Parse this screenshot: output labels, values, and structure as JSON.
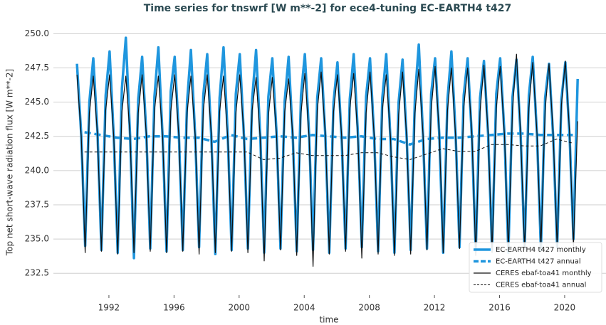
{
  "chart_data": {
    "type": "line",
    "title": "Time series for tnswrf [W m**-2] for ece4-tuning EC-EARTH4 t427",
    "xlabel": "time",
    "ylabel": "Top net short-wave radiation flux [W m**-2]",
    "xlim": [
      1988.59,
      2022.54
    ],
    "ylim": [
      230.9,
      250.9
    ],
    "xticks": [
      1992,
      1996,
      2000,
      2004,
      2008,
      2012,
      2016,
      2020
    ],
    "yticks": [
      {
        "value": 232.5,
        "label": "232.5"
      },
      {
        "value": 235,
        "label": "235.0"
      },
      {
        "value": 237.5,
        "label": "237.5"
      },
      {
        "value": 240,
        "label": "240.0"
      },
      {
        "value": 242.5,
        "label": "242.5"
      },
      {
        "value": 245,
        "label": "245.0"
      },
      {
        "value": 247.5,
        "label": "247.5"
      },
      {
        "value": 250,
        "label": "250.0"
      }
    ],
    "grid": true,
    "legend": "lower right",
    "series": [
      {
        "name": "EC-EARTH4 t427 monthly",
        "color": "#1f96de",
        "width": 3.5,
        "style": "solid",
        "x": [
          1990.04,
          1990.3,
          1990.54,
          1990.8,
          1991.04,
          1991.3,
          1991.54,
          1991.8,
          1992.04,
          1992.3,
          1992.54,
          1992.8,
          1993.04,
          1993.3,
          1993.54,
          1993.8,
          1994.04,
          1994.3,
          1994.54,
          1994.8,
          1995.04,
          1995.3,
          1995.54,
          1995.8,
          1996.04,
          1996.3,
          1996.54,
          1996.8,
          1997.04,
          1997.3,
          1997.54,
          1997.8,
          1998.04,
          1998.3,
          1998.54,
          1998.8,
          1999.04,
          1999.3,
          1999.54,
          1999.8,
          2000.04,
          2000.3,
          2000.54,
          2000.8,
          2001.04,
          2001.3,
          2001.54,
          2001.8,
          2002.04,
          2002.3,
          2002.54,
          2002.8,
          2003.04,
          2003.3,
          2003.54,
          2003.8,
          2004.04,
          2004.3,
          2004.54,
          2004.8,
          2005.04,
          2005.3,
          2005.54,
          2005.8,
          2006.04,
          2006.3,
          2006.54,
          2006.8,
          2007.04,
          2007.3,
          2007.54,
          2007.8,
          2008.04,
          2008.3,
          2008.54,
          2008.8,
          2009.04,
          2009.3,
          2009.54,
          2009.8,
          2010.04,
          2010.3,
          2010.54,
          2010.8,
          2011.04,
          2011.3,
          2011.54,
          2011.8,
          2012.04,
          2012.3,
          2012.54,
          2012.8,
          2013.04,
          2013.3,
          2013.54,
          2013.8,
          2014.04,
          2014.3,
          2014.54,
          2014.8,
          2015.04,
          2015.3,
          2015.54,
          2015.8,
          2016.04,
          2016.3,
          2016.54,
          2016.8,
          2017.04,
          2017.3,
          2017.54,
          2017.8,
          2018.04,
          2018.3,
          2018.54,
          2018.8,
          2019.04,
          2019.3,
          2019.54,
          2019.8,
          2020.04,
          2020.3,
          2020.54,
          2020.8
        ],
        "values": [
          247.8,
          242.6,
          234.5,
          245.0,
          248.2,
          242.8,
          234.2,
          245.5,
          248.7,
          242.4,
          234.0,
          246.0,
          249.7,
          242.5,
          233.6,
          245.2,
          248.3,
          242.7,
          234.3,
          245.4,
          249.0,
          242.4,
          234.1,
          245.8,
          248.3,
          242.6,
          234.2,
          245.0,
          248.8,
          242.5,
          234.4,
          245.5,
          248.5,
          242.3,
          233.9,
          245.3,
          249.0,
          242.6,
          234.2,
          245.6,
          248.5,
          242.4,
          234.3,
          245.2,
          248.8,
          242.5,
          234.0,
          245.4,
          248.2,
          242.7,
          234.3,
          245.1,
          248.3,
          242.4,
          234.1,
          245.5,
          248.5,
          242.6,
          234.2,
          245.3,
          248.2,
          242.5,
          234.0,
          245.0,
          247.9,
          242.3,
          234.3,
          245.2,
          248.5,
          242.6,
          234.4,
          245.4,
          248.2,
          242.4,
          234.1,
          245.3,
          248.5,
          242.2,
          234.0,
          245.0,
          248.1,
          242.3,
          234.2,
          245.4,
          249.2,
          242.5,
          234.3,
          245.6,
          248.2,
          242.6,
          234.0,
          245.2,
          248.7,
          242.7,
          234.4,
          245.5,
          248.2,
          242.4,
          234.1,
          245.3,
          248.0,
          242.6,
          234.2,
          245.6,
          248.2,
          242.7,
          234.0,
          245.4,
          248.1,
          242.5,
          234.3,
          245.5,
          248.3,
          242.6,
          234.2,
          245.3,
          247.8,
          242.4,
          234.4,
          245.2,
          247.9,
          242.6,
          235.0,
          246.7
        ]
      },
      {
        "name": "EC-EARTH4 t427 annual",
        "color": "#1f96de",
        "width": 3.5,
        "style": "dashed",
        "x": [
          1990.5,
          1991.5,
          1992.5,
          1993.5,
          1994.5,
          1995.5,
          1996.5,
          1997.5,
          1998.5,
          1999.5,
          2000.5,
          2001.5,
          2002.5,
          2003.5,
          2004.5,
          2005.5,
          2006.5,
          2007.5,
          2008.5,
          2009.5,
          2010.5,
          2011.5,
          2012.5,
          2013.5,
          2014.5,
          2015.5,
          2016.5,
          2017.5,
          2018.5,
          2019.5,
          2020.5
        ],
        "values": [
          242.8,
          242.6,
          242.4,
          242.3,
          242.5,
          242.5,
          242.4,
          242.4,
          242.1,
          242.6,
          242.3,
          242.4,
          242.5,
          242.4,
          242.6,
          242.5,
          242.4,
          242.5,
          242.3,
          242.3,
          241.9,
          242.3,
          242.4,
          242.4,
          242.5,
          242.6,
          242.7,
          242.7,
          242.6,
          242.6,
          242.6
        ]
      },
      {
        "name": "CERES ebaf-toa41 monthly",
        "color": "#111111",
        "width": 1.2,
        "style": "solid",
        "x": [
          1990.04,
          1990.3,
          1990.54,
          1990.8,
          1991.04,
          1991.3,
          1991.54,
          1991.8,
          1992.04,
          1992.3,
          1992.54,
          1992.8,
          1993.04,
          1993.3,
          1993.54,
          1993.8,
          1994.04,
          1994.3,
          1994.54,
          1994.8,
          1995.04,
          1995.3,
          1995.54,
          1995.8,
          1996.04,
          1996.3,
          1996.54,
          1996.8,
          1997.04,
          1997.3,
          1997.54,
          1997.8,
          1998.04,
          1998.3,
          1998.54,
          1998.8,
          1999.04,
          1999.3,
          1999.54,
          1999.8,
          2000.04,
          2000.3,
          2000.54,
          2000.8,
          2001.04,
          2001.3,
          2001.54,
          2001.8,
          2002.04,
          2002.3,
          2002.54,
          2002.8,
          2003.04,
          2003.3,
          2003.54,
          2003.8,
          2004.04,
          2004.3,
          2004.54,
          2004.8,
          2005.04,
          2005.3,
          2005.54,
          2005.8,
          2006.04,
          2006.3,
          2006.54,
          2006.8,
          2007.04,
          2007.3,
          2007.54,
          2007.8,
          2008.04,
          2008.3,
          2008.54,
          2008.8,
          2009.04,
          2009.3,
          2009.54,
          2009.8,
          2010.04,
          2010.3,
          2010.54,
          2010.8,
          2011.04,
          2011.3,
          2011.54,
          2011.8,
          2012.04,
          2012.3,
          2012.54,
          2012.8,
          2013.04,
          2013.3,
          2013.54,
          2013.8,
          2014.04,
          2014.3,
          2014.54,
          2014.8,
          2015.04,
          2015.3,
          2015.54,
          2015.8,
          2016.04,
          2016.3,
          2016.54,
          2016.8,
          2017.04,
          2017.3,
          2017.54,
          2017.8,
          2018.04,
          2018.3,
          2018.54,
          2018.8,
          2019.04,
          2019.3,
          2019.54,
          2019.8,
          2020.04,
          2020.3,
          2020.54,
          2020.8
        ],
        "values": [
          247.0,
          242.5,
          234.0,
          244.2,
          246.9,
          242.6,
          234.1,
          244.4,
          247.0,
          242.4,
          233.9,
          244.3,
          246.9,
          242.5,
          234.0,
          244.2,
          247.0,
          242.6,
          234.1,
          244.4,
          246.9,
          242.4,
          234.0,
          244.3,
          247.0,
          242.5,
          234.1,
          244.2,
          246.9,
          242.6,
          233.9,
          244.4,
          247.0,
          242.5,
          234.0,
          244.3,
          246.9,
          242.4,
          234.1,
          244.2,
          247.0,
          242.5,
          234.0,
          244.4,
          246.8,
          242.3,
          233.4,
          244.0,
          246.8,
          242.6,
          234.2,
          244.3,
          246.7,
          242.5,
          233.8,
          244.2,
          247.1,
          242.4,
          233.0,
          244.4,
          247.2,
          242.6,
          233.9,
          244.3,
          247.0,
          242.5,
          234.1,
          244.5,
          247.1,
          242.3,
          233.6,
          244.2,
          247.2,
          242.5,
          233.9,
          244.4,
          247.0,
          242.4,
          233.8,
          244.1,
          247.2,
          242.3,
          233.9,
          244.2,
          247.4,
          242.6,
          234.2,
          244.5,
          247.6,
          242.7,
          234.0,
          244.4,
          247.5,
          242.5,
          234.3,
          244.6,
          247.5,
          242.6,
          233.8,
          244.3,
          247.7,
          242.7,
          234.0,
          244.5,
          247.6,
          242.6,
          234.1,
          244.6,
          248.5,
          242.5,
          234.2,
          244.6,
          247.9,
          242.7,
          234.3,
          244.4,
          247.8,
          242.6,
          234.4,
          244.8,
          248.0,
          242.8,
          234.5,
          243.6
        ]
      },
      {
        "name": "CERES ebaf-toa41 annual",
        "color": "#111111",
        "width": 1,
        "style": "dashed",
        "x": [
          1990.5,
          1991.5,
          1992.5,
          1993.5,
          1994.5,
          1995.5,
          1996.5,
          1997.5,
          1998.5,
          1999.5,
          2000.5,
          2001.5,
          2002.5,
          2003.5,
          2004.5,
          2005.5,
          2006.5,
          2007.5,
          2008.5,
          2009.5,
          2010.5,
          2011.5,
          2012.5,
          2013.5,
          2014.5,
          2015.5,
          2016.5,
          2017.5,
          2018.5,
          2019.5,
          2020.5
        ],
        "values": [
          241.35,
          241.35,
          241.35,
          241.35,
          241.35,
          241.35,
          241.35,
          241.35,
          241.35,
          241.35,
          241.35,
          240.8,
          240.9,
          241.3,
          241.1,
          241.1,
          241.1,
          241.3,
          241.3,
          241.0,
          240.8,
          241.2,
          241.6,
          241.4,
          241.4,
          241.9,
          241.9,
          241.8,
          241.8,
          242.3,
          242.0
        ]
      }
    ]
  }
}
